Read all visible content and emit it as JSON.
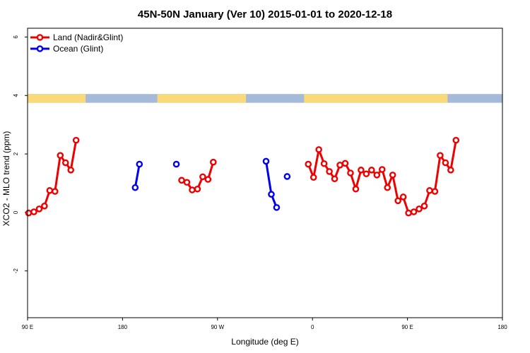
{
  "chart_data": {
    "type": "line",
    "title": "45N-50N January (Ver 10)   2015-01-01 to 2020-12-18",
    "xlabel": "Longitude (deg E)",
    "ylabel": "XCO2 - MLO trend (ppm)",
    "xlim": [
      90,
      540
    ],
    "ylim": [
      -3.6,
      6.3
    ],
    "x_ticks": [
      {
        "value": 90,
        "label": "90 E"
      },
      {
        "value": 180,
        "label": "180"
      },
      {
        "value": 270,
        "label": "90 W"
      },
      {
        "value": 360,
        "label": "0"
      },
      {
        "value": 450,
        "label": "90 E"
      },
      {
        "value": 540,
        "label": "180"
      }
    ],
    "y_ticks": [
      {
        "value": -2,
        "label": "-2"
      },
      {
        "value": 0,
        "label": "0"
      },
      {
        "value": 2,
        "label": "2"
      },
      {
        "value": 4,
        "label": "4"
      },
      {
        "value": 6,
        "label": "6"
      }
    ],
    "grid": false,
    "legend_position": "top-left",
    "land_ocean_band": {
      "y_range": [
        3.75,
        4.05
      ],
      "land_color": "#F9D978",
      "ocean_color": "#A5B9DB"
    },
    "series": [
      {
        "name": "Land (Nadir&Glint)",
        "color": "#EE0000",
        "segments": [
          [
            [
              91,
              -0.02
            ],
            [
              96,
              0.02
            ],
            [
              101,
              0.12
            ],
            [
              106,
              0.22
            ],
            [
              111,
              0.75
            ],
            [
              116,
              0.72
            ],
            [
              121,
              1.95
            ],
            [
              126,
              1.7
            ],
            [
              131,
              1.45
            ],
            [
              136,
              2.47
            ]
          ],
          [
            [
              236,
              1.1
            ],
            [
              241,
              1.03
            ],
            [
              246,
              0.77
            ],
            [
              251,
              0.8
            ],
            [
              256,
              1.22
            ],
            [
              261,
              1.13
            ],
            [
              266,
              1.72
            ]
          ],
          [
            [
              356,
              1.65
            ],
            [
              361,
              1.2
            ],
            [
              366,
              2.15
            ],
            [
              371,
              1.67
            ],
            [
              376,
              1.4
            ],
            [
              381,
              1.15
            ],
            [
              386,
              1.62
            ],
            [
              391,
              1.68
            ],
            [
              396,
              1.35
            ],
            [
              401,
              0.8
            ],
            [
              406,
              1.45
            ],
            [
              411,
              1.32
            ],
            [
              416,
              1.45
            ],
            [
              421,
              1.28
            ],
            [
              426,
              1.47
            ],
            [
              431,
              0.85
            ],
            [
              436,
              1.28
            ],
            [
              441,
              0.4
            ],
            [
              446,
              0.53
            ],
            [
              451,
              -0.02
            ],
            [
              456,
              0.02
            ],
            [
              461,
              0.12
            ],
            [
              466,
              0.22
            ],
            [
              471,
              0.75
            ],
            [
              476,
              0.72
            ],
            [
              481,
              1.95
            ],
            [
              486,
              1.7
            ],
            [
              491,
              1.45
            ],
            [
              496,
              2.47
            ]
          ]
        ]
      },
      {
        "name": "Ocean (Glint)",
        "color": "#0000EE",
        "segments": [
          [
            [
              192,
              0.85
            ],
            [
              196,
              1.65
            ]
          ],
          [
            [
              231,
              1.65
            ]
          ],
          [
            [
              316,
              1.75
            ],
            [
              321,
              0.62
            ],
            [
              326,
              0.17
            ]
          ],
          [
            [
              336,
              1.23
            ]
          ]
        ]
      }
    ]
  }
}
